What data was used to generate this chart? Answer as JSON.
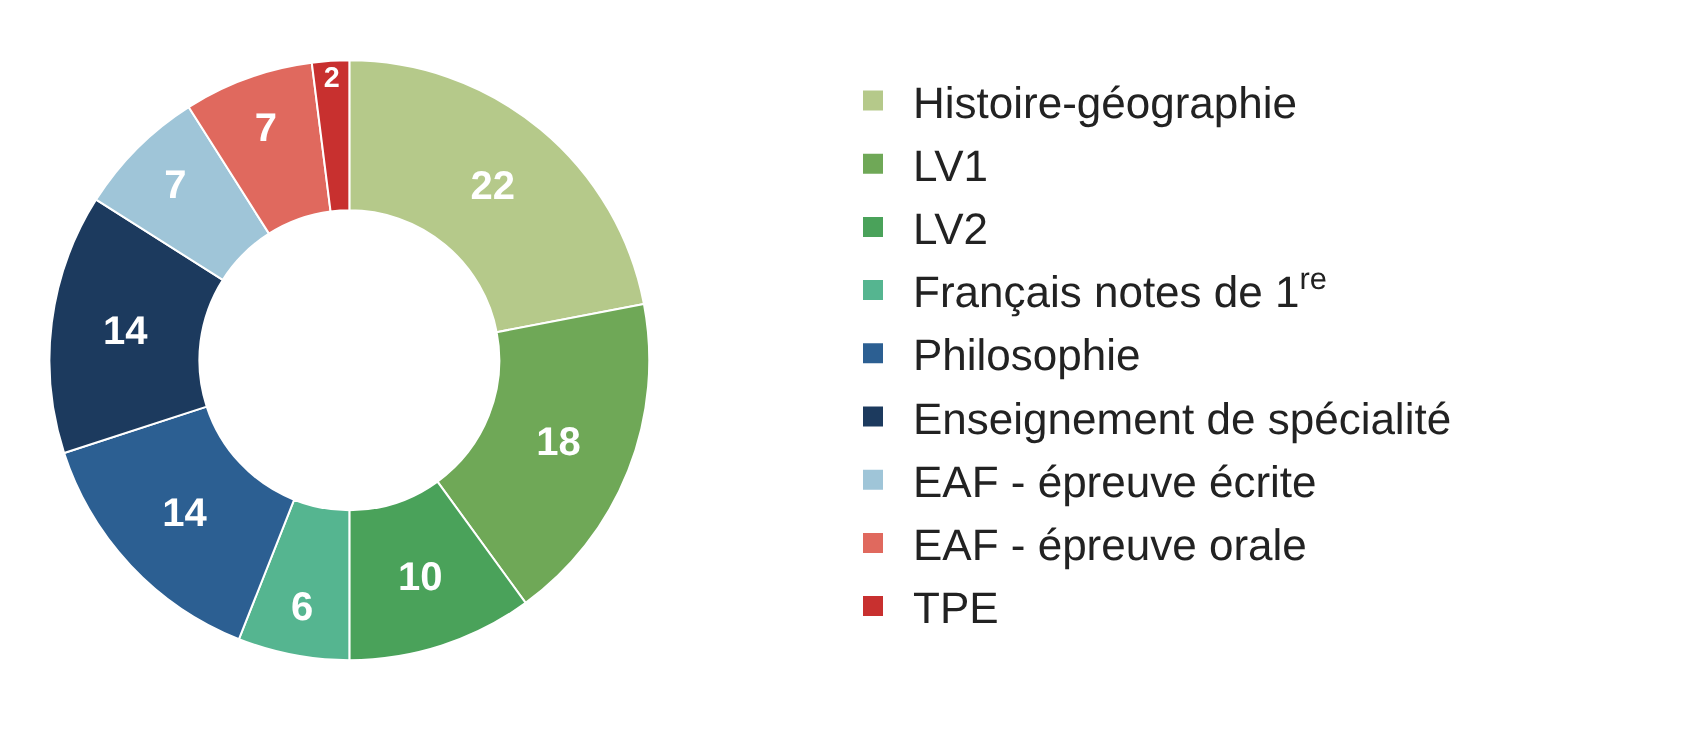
{
  "chart_data": {
    "type": "donut",
    "categories": [
      "Histoire-géographie",
      "LV1",
      "LV2",
      "Français notes de 1$^{re}$",
      "Philosophie",
      "Enseignement de spécialité",
      "EAF - épreuve écrite",
      "EAF - épreuve orale",
      "TPE"
    ],
    "values": [
      22,
      18,
      10,
      6,
      14,
      14,
      7,
      7,
      2
    ],
    "colors": [
      "#b5c98a",
      "#6fa857",
      "#4aa25a",
      "#55b590",
      "#2c5f92",
      "#1c3a5e",
      "#9fc5d8",
      "#e0695e",
      "#c8302f"
    ],
    "data_labels": true,
    "legend": "right"
  }
}
